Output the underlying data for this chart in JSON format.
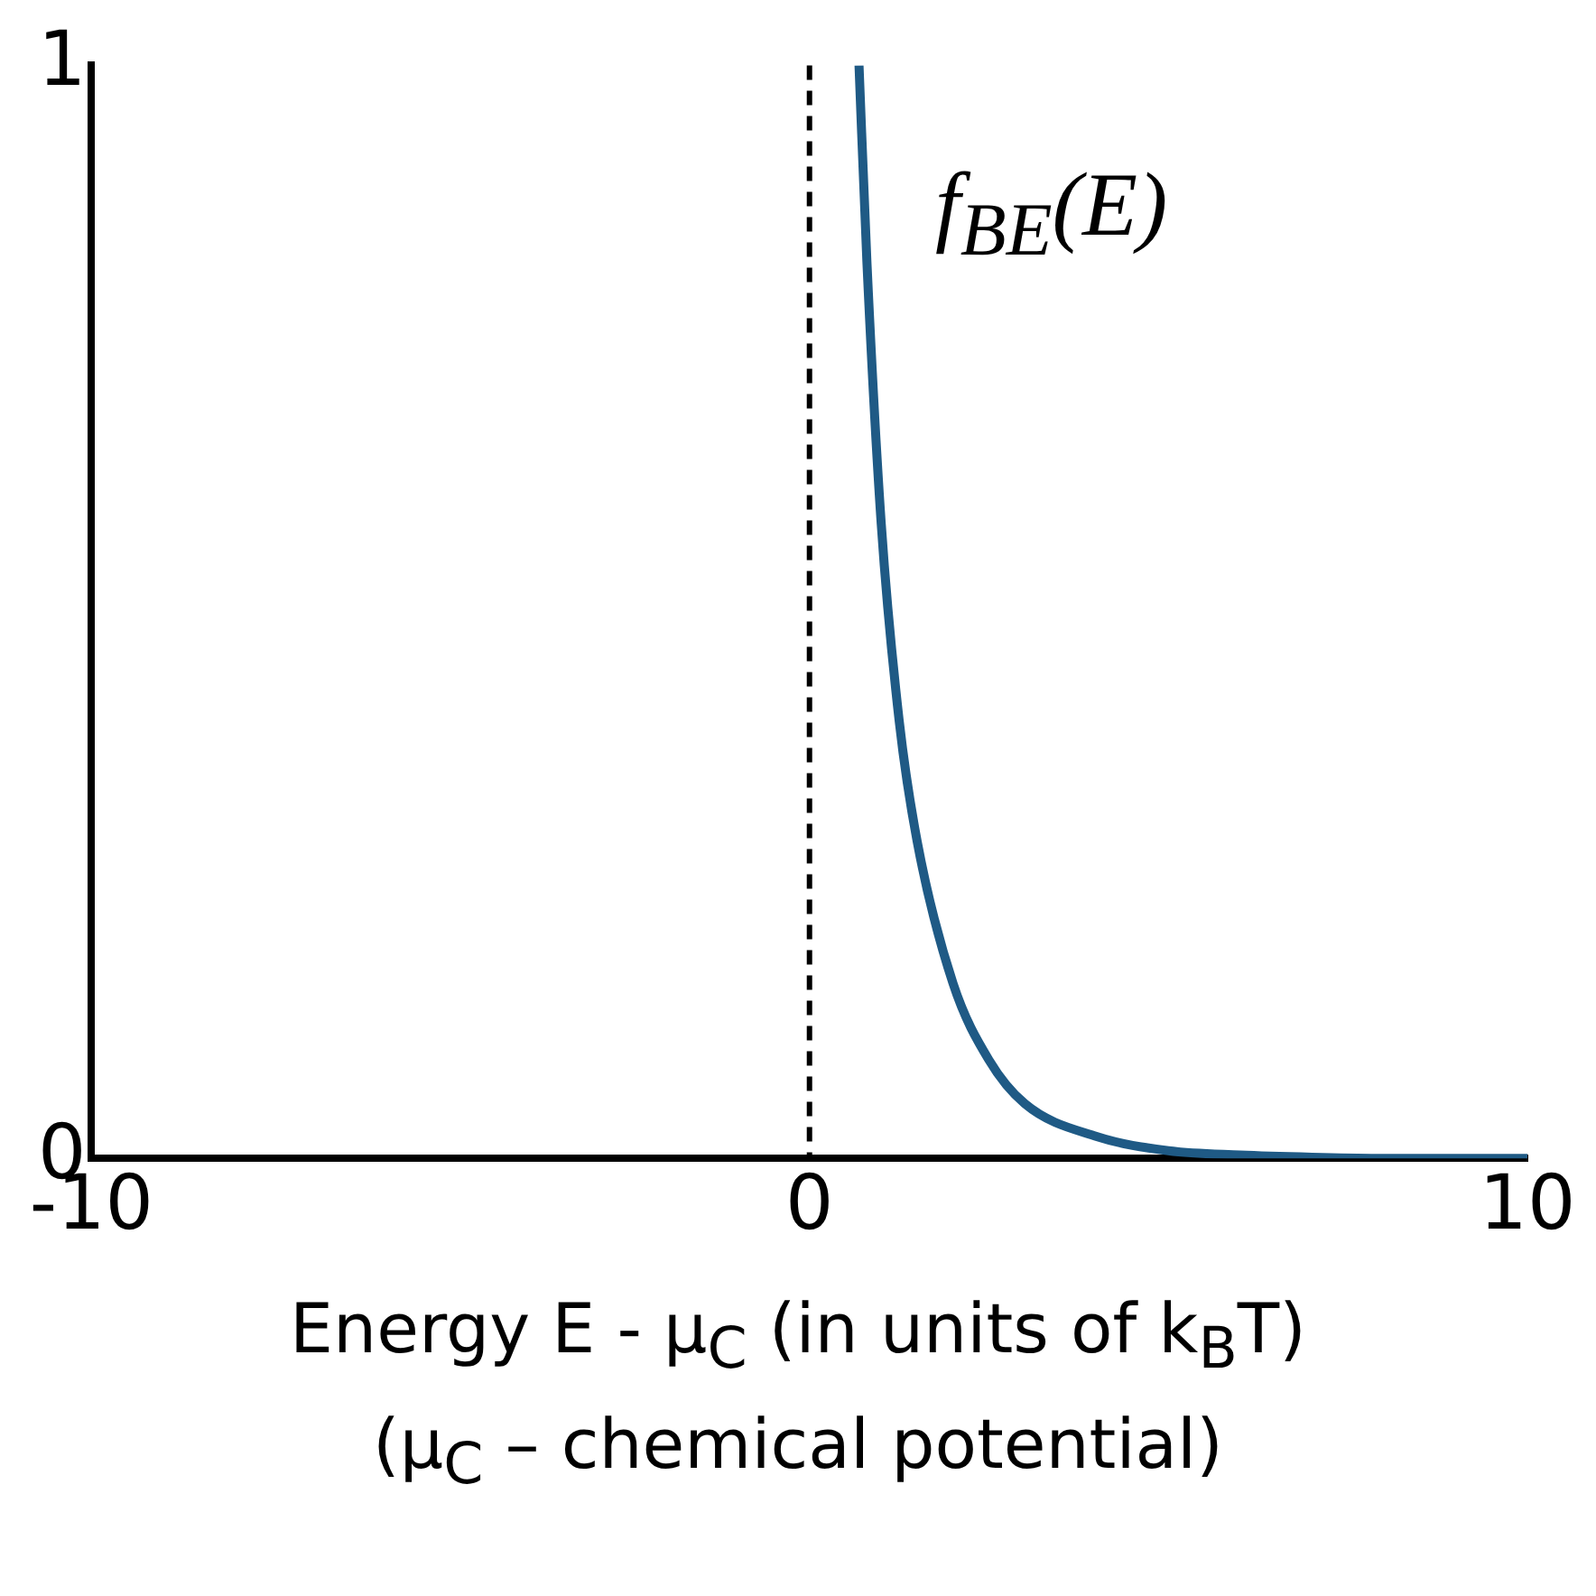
{
  "chart_data": {
    "type": "line",
    "xlabel": "Energy E - μ$_{C}$ (in units of k$_{B}$T)\n(μ$_{C}$ – chemical potential)",
    "series": [
      {
        "color": "#1f5a85",
        "x": [
          0.69,
          0.8,
          1,
          1.25,
          1.5,
          2,
          2.5,
          3,
          4,
          5,
          6,
          7,
          8,
          10
        ],
        "values": [
          1.0,
          0.82,
          0.58,
          0.4,
          0.29,
          0.16,
          0.09,
          0.05,
          0.02,
          0.007,
          0.003,
          0.001,
          0,
          0
        ]
      }
    ],
    "xlim": [
      -10,
      10
    ],
    "xticks": [
      -10,
      0,
      10
    ],
    "ylim": [
      0,
      1
    ],
    "yticks": [
      0,
      1
    ],
    "ref_lines": [
      {
        "axis": "x",
        "value": 0,
        "color": "#000000",
        "line_style": "dashed"
      }
    ],
    "annotations": [
      "f$_{BE}$(E)"
    ]
  }
}
